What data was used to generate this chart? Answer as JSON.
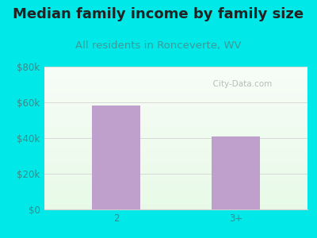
{
  "title": "Median family income by family size",
  "subtitle": "All residents in Ronceverte, WV",
  "categories": [
    "2",
    "3+"
  ],
  "values": [
    58000,
    41000
  ],
  "bar_color": "#bf9fcc",
  "background_color": "#00e8e8",
  "ylim": [
    0,
    80000
  ],
  "yticks": [
    0,
    20000,
    40000,
    60000,
    80000
  ],
  "ytick_labels": [
    "$0",
    "$20k",
    "$40k",
    "$60k",
    "$80k"
  ],
  "title_color": "#222222",
  "subtitle_color": "#3a9a9a",
  "tick_color": "#3a8a8a",
  "watermark_text": "  City-Data.com",
  "watermark_color": "#b0b0b0",
  "title_fontsize": 13,
  "subtitle_fontsize": 9.5,
  "tick_fontsize": 8.5,
  "bar_width": 0.4,
  "x_positions": [
    0.5,
    1.5
  ]
}
